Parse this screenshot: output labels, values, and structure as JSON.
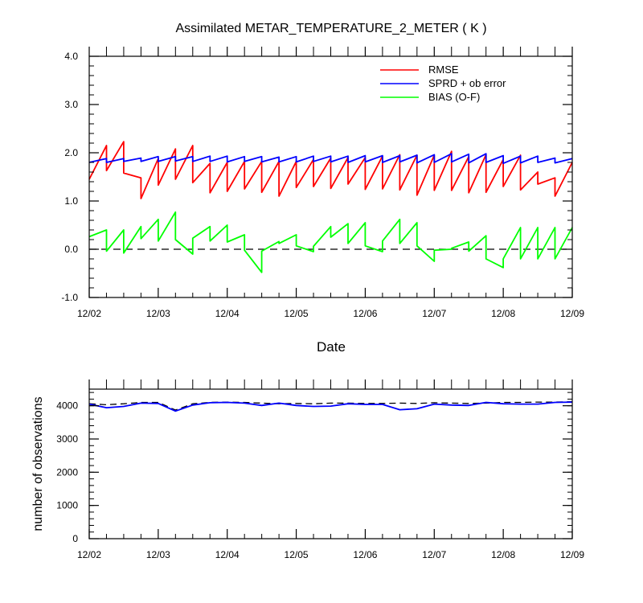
{
  "chart_data": [
    {
      "type": "line",
      "title": "Assimilated METAR_TEMPERATURE_2_METER ( K )",
      "xlabel": "Date",
      "ylabel": "",
      "x_ticks": [
        "12/02",
        "12/03",
        "12/04",
        "12/05",
        "12/06",
        "12/07",
        "12/08",
        "12/09"
      ],
      "ylim": [
        -1.0,
        4.0
      ],
      "y_ticks": [
        "-1.0",
        "0.0",
        "1.0",
        "2.0",
        "3.0",
        "4.0"
      ],
      "grid": false,
      "legend_position": "top-right",
      "reference_line": {
        "y": 0.0,
        "style": "dashed",
        "color": "#000000"
      },
      "x_days": [
        0,
        0.25,
        0.25,
        0.5,
        0.5,
        0.75,
        0.75,
        1,
        1,
        1.25,
        1.25,
        1.5,
        1.5,
        1.75,
        1.75,
        2,
        2,
        2.25,
        2.25,
        2.5,
        2.5,
        2.75,
        2.75,
        3,
        3,
        3.25,
        3.25,
        3.5,
        3.5,
        3.75,
        3.75,
        4,
        4,
        4.25,
        4.25,
        4.5,
        4.5,
        4.75,
        4.75,
        5,
        5,
        5.25,
        5.25,
        5.5,
        5.5,
        5.75,
        5.75,
        6,
        6,
        6.25,
        6.25,
        6.5,
        6.5,
        6.75,
        6.75,
        7
      ],
      "series": [
        {
          "name": "RMSE",
          "color": "#ff0000",
          "values": [
            1.45,
            2.15,
            1.63,
            2.23,
            1.58,
            1.48,
            1.05,
            1.88,
            1.33,
            2.08,
            1.45,
            2.15,
            1.38,
            1.78,
            1.17,
            1.8,
            1.2,
            1.82,
            1.25,
            1.82,
            1.18,
            1.82,
            1.1,
            1.82,
            1.28,
            1.86,
            1.3,
            1.89,
            1.26,
            1.9,
            1.35,
            1.9,
            1.24,
            1.93,
            1.25,
            1.96,
            1.23,
            1.95,
            1.12,
            1.95,
            1.22,
            2.03,
            1.22,
            1.92,
            1.17,
            1.96,
            1.18,
            1.86,
            1.3,
            1.95,
            1.23,
            1.6,
            1.35,
            1.48,
            1.1,
            1.8
          ]
        },
        {
          "name": "SPRD + ob error",
          "color": "#0000ff",
          "values": [
            1.8,
            1.88,
            1.8,
            1.88,
            1.82,
            1.89,
            1.82,
            1.92,
            1.82,
            1.92,
            1.83,
            1.92,
            1.82,
            1.93,
            1.82,
            1.93,
            1.81,
            1.92,
            1.82,
            1.92,
            1.81,
            1.91,
            1.81,
            1.92,
            1.81,
            1.93,
            1.82,
            1.93,
            1.81,
            1.93,
            1.8,
            1.94,
            1.81,
            1.94,
            1.8,
            1.94,
            1.81,
            1.95,
            1.79,
            1.96,
            1.8,
            1.98,
            1.81,
            1.97,
            1.79,
            1.98,
            1.8,
            1.94,
            1.78,
            1.93,
            1.79,
            1.93,
            1.8,
            1.89,
            1.79,
            1.88
          ]
        },
        {
          "name": "BIAS (O-F)",
          "color": "#00ff00",
          "values": [
            0.26,
            0.4,
            -0.04,
            0.4,
            -0.08,
            0.47,
            0.22,
            0.62,
            0.17,
            0.77,
            0.2,
            -0.1,
            0.23,
            0.47,
            0.17,
            0.5,
            0.15,
            0.3,
            -0.02,
            -0.48,
            -0.04,
            0.16,
            0.12,
            0.3,
            0.07,
            -0.05,
            0.06,
            0.47,
            0.25,
            0.53,
            0.12,
            0.55,
            0.07,
            -0.05,
            0.17,
            0.62,
            0.12,
            0.55,
            0.07,
            -0.25,
            -0.02,
            0,
            0.02,
            0.15,
            -0.04,
            0.28,
            -0.2,
            -0.38,
            -0.2,
            0.45,
            -0.2,
            0.45,
            -0.2,
            0.45,
            -0.2,
            0.45
          ]
        }
      ]
    },
    {
      "type": "line",
      "title": "",
      "xlabel": "",
      "ylabel": "number of observations",
      "x_ticks": [
        "12/02",
        "12/03",
        "12/04",
        "12/05",
        "12/06",
        "12/07",
        "12/08",
        "12/09"
      ],
      "ylim": [
        0,
        4500
      ],
      "y_ticks": [
        "0",
        "1000",
        "2000",
        "3000",
        "4000"
      ],
      "grid": false,
      "x_days": [
        0,
        0.25,
        0.5,
        0.75,
        1,
        1.25,
        1.5,
        1.75,
        2,
        2.25,
        2.5,
        2.75,
        3,
        3.25,
        3.5,
        3.75,
        4,
        4.25,
        4.5,
        4.75,
        5,
        5.25,
        5.5,
        5.75,
        6,
        6.25,
        6.5,
        6.75,
        7
      ],
      "series": [
        {
          "name": "",
          "color": "#000000",
          "style": "dashed",
          "values": [
            4060,
            4030,
            4060,
            4100,
            4100,
            3870,
            4060,
            4100,
            4110,
            4100,
            4080,
            4060,
            4070,
            4060,
            4080,
            4080,
            4070,
            4070,
            4080,
            4070,
            4090,
            4080,
            4070,
            4080,
            4100,
            4100,
            4110,
            4110,
            4120
          ]
        },
        {
          "name": "",
          "color": "#0000ff",
          "style": "solid",
          "values": [
            4050,
            3940,
            3980,
            4080,
            4070,
            3840,
            4020,
            4090,
            4100,
            4080,
            4010,
            4080,
            4010,
            3980,
            3990,
            4060,
            4040,
            4040,
            3880,
            3910,
            4050,
            4020,
            4010,
            4100,
            4060,
            4050,
            4050,
            4100,
            4110
          ]
        }
      ]
    }
  ]
}
